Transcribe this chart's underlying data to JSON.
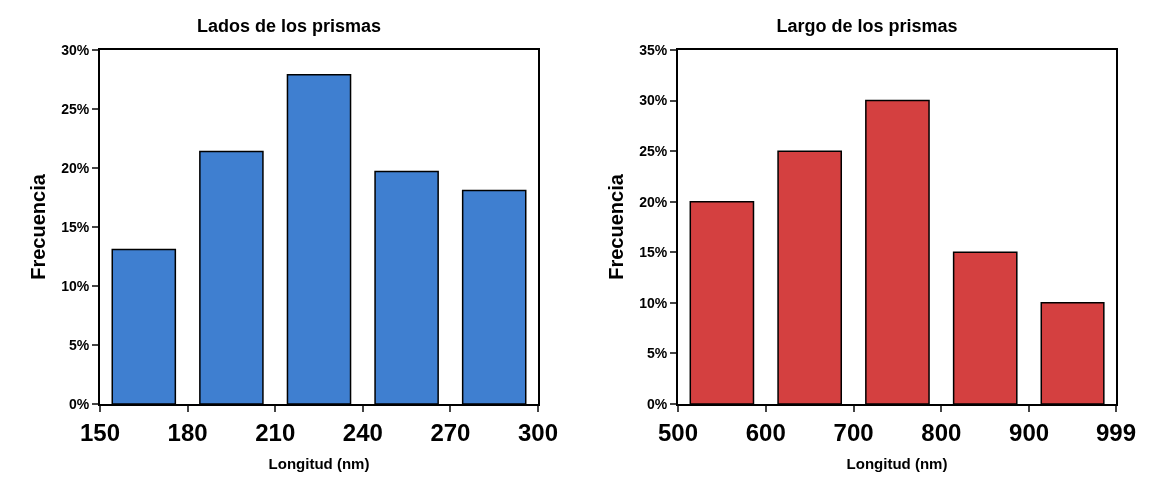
{
  "chart_data": [
    {
      "type": "histogram",
      "title": "Lados de los prismas",
      "xlabel": "Longitud (nm)",
      "ylabel": "Frecuencia",
      "bins": [
        150,
        180,
        210,
        240,
        270,
        300
      ],
      "values": [
        13.1,
        21.4,
        27.9,
        19.7,
        18.1
      ],
      "color": "#3f7fd0",
      "xlim": [
        150,
        300
      ],
      "xticks": [
        150,
        180,
        210,
        240,
        270,
        300
      ],
      "ylim": [
        0,
        30
      ],
      "yticks": [
        {
          "value": 0,
          "label": "0%"
        },
        {
          "value": 5,
          "label": "5%"
        },
        {
          "value": 10,
          "label": "10%"
        },
        {
          "value": 15,
          "label": "15%"
        },
        {
          "value": 20,
          "label": "20%"
        },
        {
          "value": 25,
          "label": "25%"
        },
        {
          "value": 30,
          "label": "30%"
        }
      ]
    },
    {
      "type": "histogram",
      "title": "Largo de los prismas",
      "xlabel": "Longitud (nm)",
      "ylabel": "Frecuencia",
      "bins": [
        500,
        600,
        700,
        800,
        900,
        999
      ],
      "values": [
        20,
        25,
        30,
        15,
        10
      ],
      "color": "#d44040",
      "xlim": [
        500,
        999
      ],
      "xticks": [
        500,
        600,
        700,
        800,
        900,
        999
      ],
      "ylim": [
        0,
        35
      ],
      "yticks": [
        {
          "value": 0,
          "label": "0%"
        },
        {
          "value": 5,
          "label": "5%"
        },
        {
          "value": 10,
          "label": "10%"
        },
        {
          "value": 15,
          "label": "15%"
        },
        {
          "value": 20,
          "label": "20%"
        },
        {
          "value": 25,
          "label": "25%"
        },
        {
          "value": 30,
          "label": "30%"
        },
        {
          "value": 35,
          "label": "35%"
        }
      ]
    }
  ]
}
